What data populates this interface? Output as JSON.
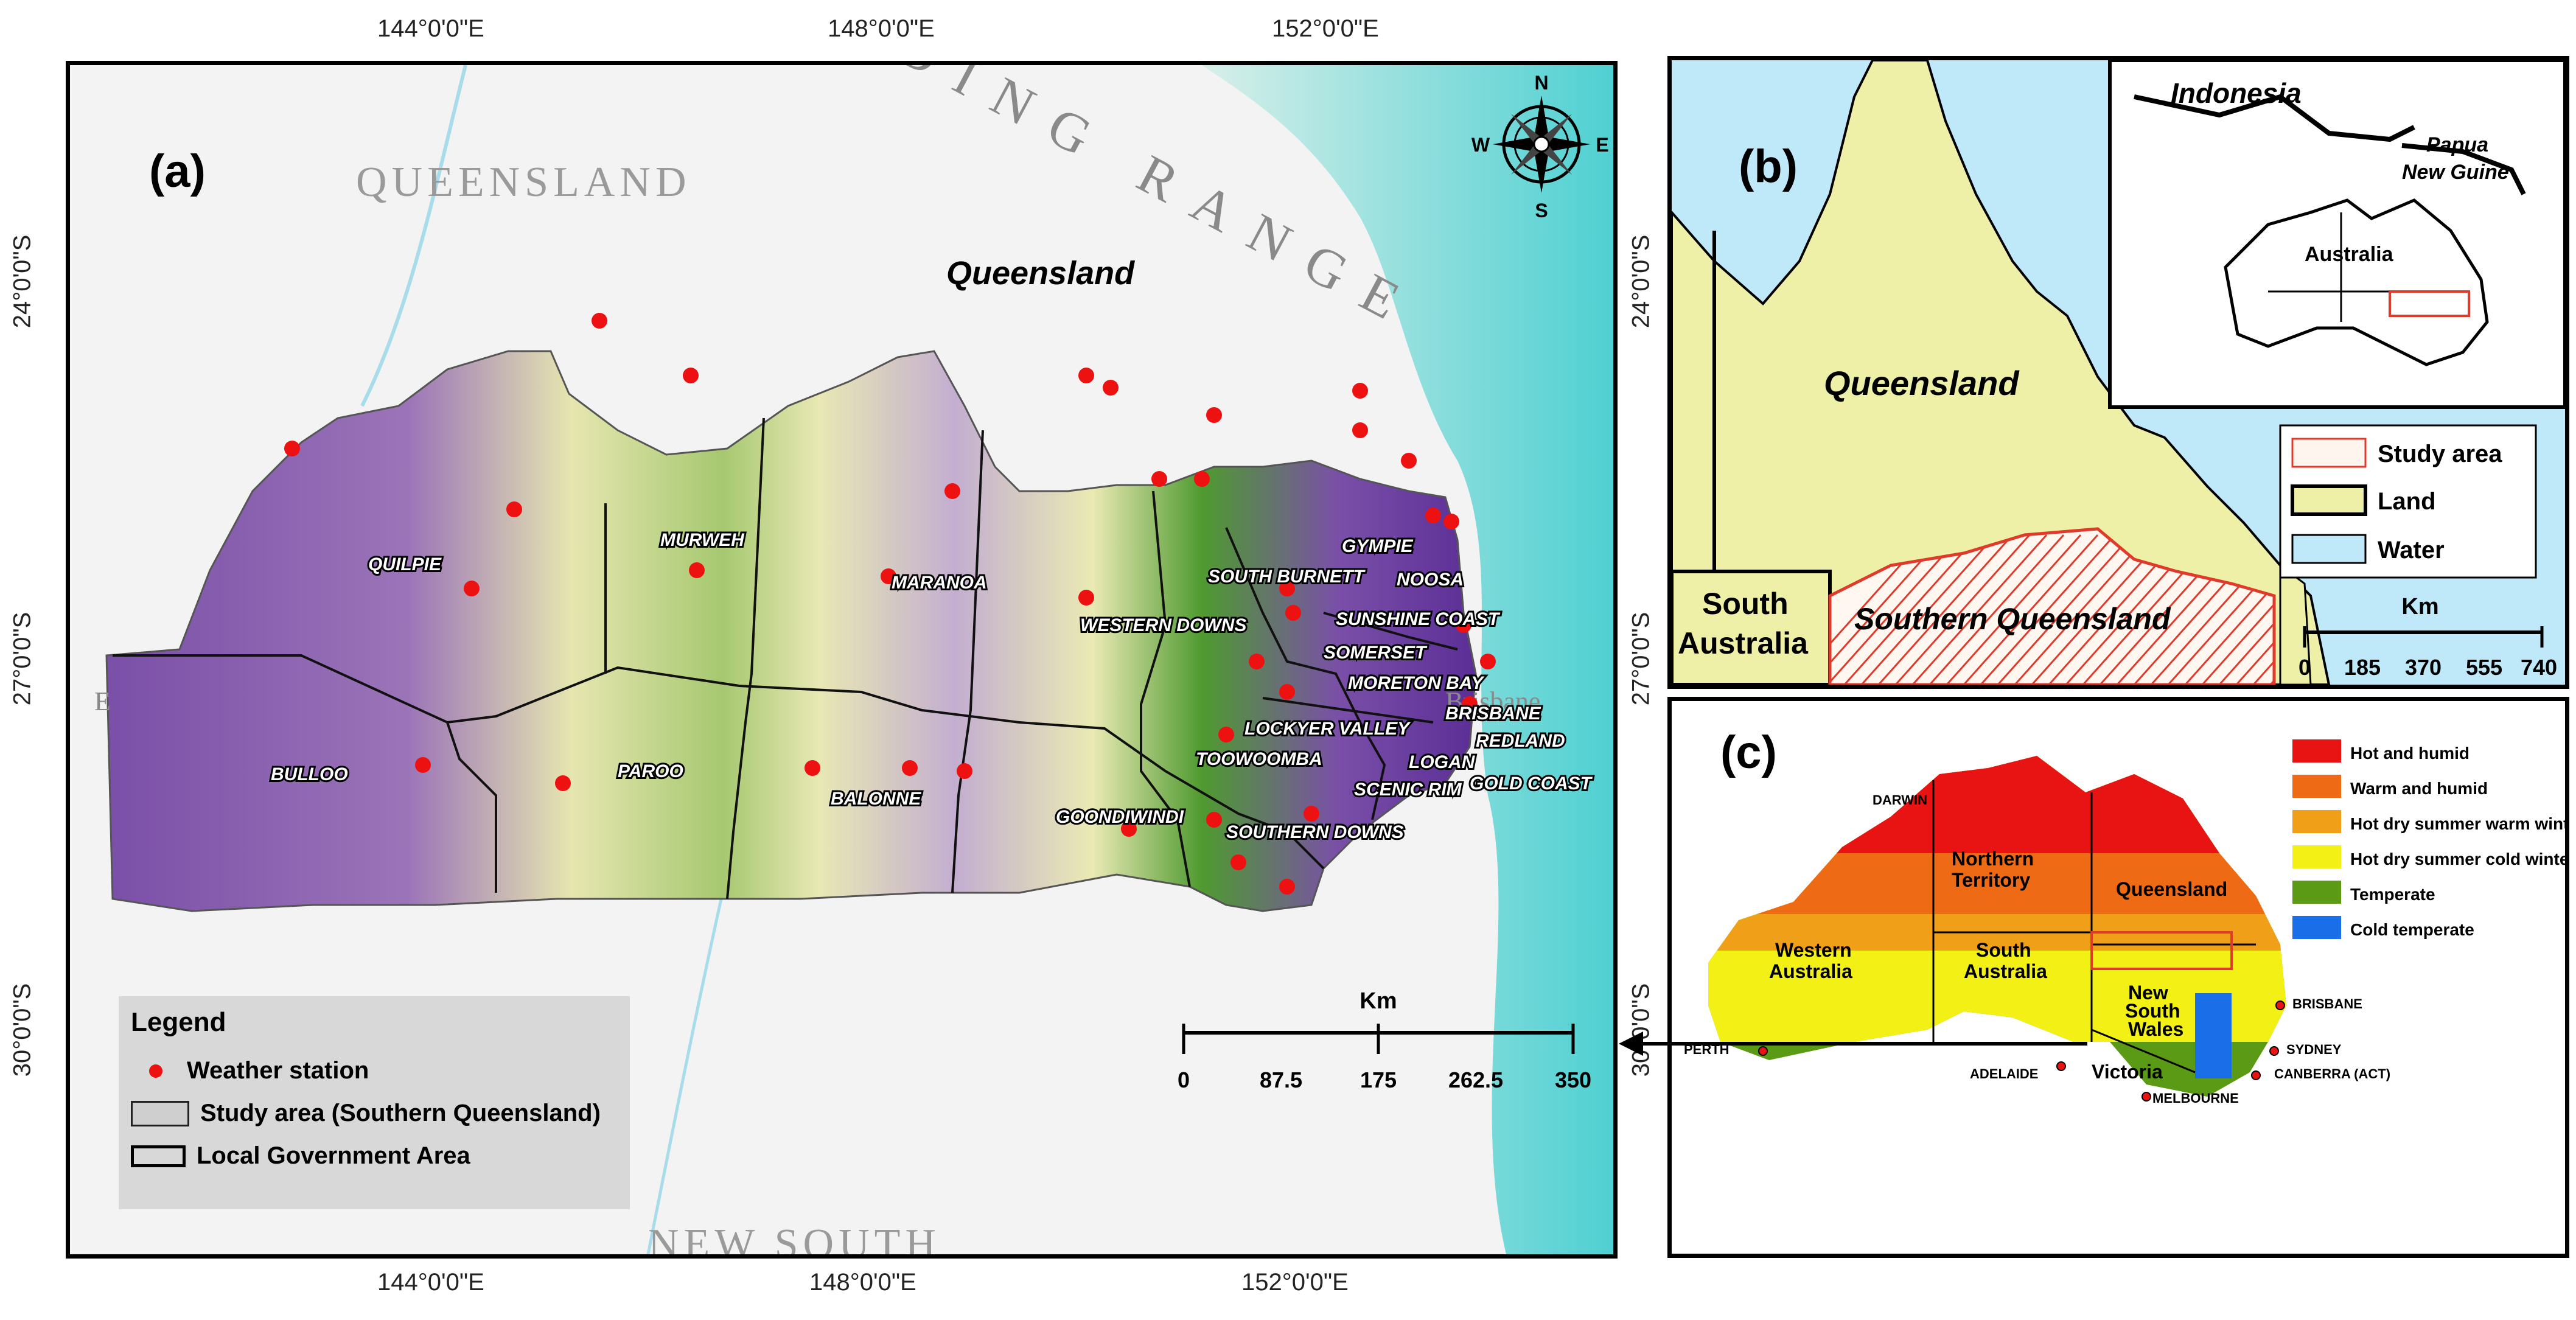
{
  "panel_a": {
    "label": "(a)",
    "top_coords": [
      "144°0'0\"E",
      "148°0'0\"E",
      "152°0'0\"E"
    ],
    "bottom_coords": [
      "144°0'0\"E",
      "148°0'0\"E",
      "152°0'0\"E"
    ],
    "left_coords": [
      "24°0'0\"S",
      "27°0'0\"S",
      "30°0'0\"S"
    ],
    "basemap_labels": [
      "QUEENSLAND",
      "DING RANGE",
      "NEW SOUTH",
      "Brisbane",
      "E"
    ],
    "region_label": "Queensland",
    "compass": {
      "n": "N",
      "s": "S",
      "e": "E",
      "w": "W"
    },
    "lga_names": [
      "QUILPIE",
      "MURWEH",
      "MARANOA",
      "WESTERN DOWNS",
      "SOUTH BURNETT",
      "GYMPIE",
      "NOOSA",
      "SUNSHINE COAST",
      "SOMERSET",
      "MORETON BAY",
      "BRISBANE",
      "LOCKYER VALLEY",
      "REDLAND",
      "TOOWOOMBA",
      "LOGAN",
      "SCENIC RIM",
      "GOLD COAST",
      "BULLOO",
      "PAROO",
      "BALONNE",
      "GOONDIWINDI",
      "SOUTHERN DOWNS"
    ],
    "scale": {
      "unit": "Km",
      "ticks": [
        "0",
        "87.5",
        "175",
        "262.5",
        "350"
      ]
    },
    "legend": {
      "title": "Legend",
      "items": [
        "Weather station",
        "Study area (Southern Queensland)",
        "Local Government Area"
      ]
    },
    "colors": {
      "station": "#ee1111",
      "lowland": "#7a4fa8",
      "highland": "#2e7d1a",
      "mid": "#e8e8b0",
      "water": "#aee3e0"
    }
  },
  "panel_b": {
    "label": "(b)",
    "left_coords": [
      "24°0'0\"S",
      "27°0'0\"S"
    ],
    "labels": {
      "queensland": "Queensland",
      "south_australia_1": "South",
      "south_australia_2": "Australia",
      "southern_queensland": "Southern Queensland"
    },
    "inset_labels": {
      "indonesia": "Indonesia",
      "papua_1": "Papua",
      "papua_2": "New Guine",
      "australia": "Australia"
    },
    "legend": [
      "Study area",
      "Land",
      "Water"
    ],
    "scale": {
      "unit": "Km",
      "ticks": [
        "0",
        "185",
        "370",
        "555",
        "740"
      ]
    },
    "colors": {
      "land": "#eef0a8",
      "water": "#bfe8f8",
      "study": "#e03a2a"
    }
  },
  "panel_c": {
    "label": "(c)",
    "left_coord": "30°0'0\"S",
    "legend": [
      {
        "label": "Hot and humid",
        "color": "#e81414"
      },
      {
        "label": "Warm and humid",
        "color": "#ee6a14"
      },
      {
        "label": "Hot dry summer warm winter",
        "color": "#f0a018"
      },
      {
        "label": "Hot dry summer cold winter",
        "color": "#f2f014"
      },
      {
        "label": "Temperate",
        "color": "#5a9a14"
      },
      {
        "label": "Cold temperate",
        "color": "#1a6ee8"
      }
    ],
    "states": {
      "nt_1": "Northern",
      "nt_2": "Territory",
      "qld": "Queensland",
      "wa_1": "Western",
      "wa_2": "Australia",
      "sa_1": "South",
      "sa_2": "Australia",
      "nsw_1": "New",
      "nsw_2": "South",
      "nsw_3": "Wales",
      "vic": "Victoria"
    },
    "cities": [
      "DARWIN",
      "BRISBANE",
      "PERTH",
      "SYDNEY",
      "ADELAIDE",
      "CANBERRA (ACT)",
      "MELBOURNE"
    ]
  }
}
